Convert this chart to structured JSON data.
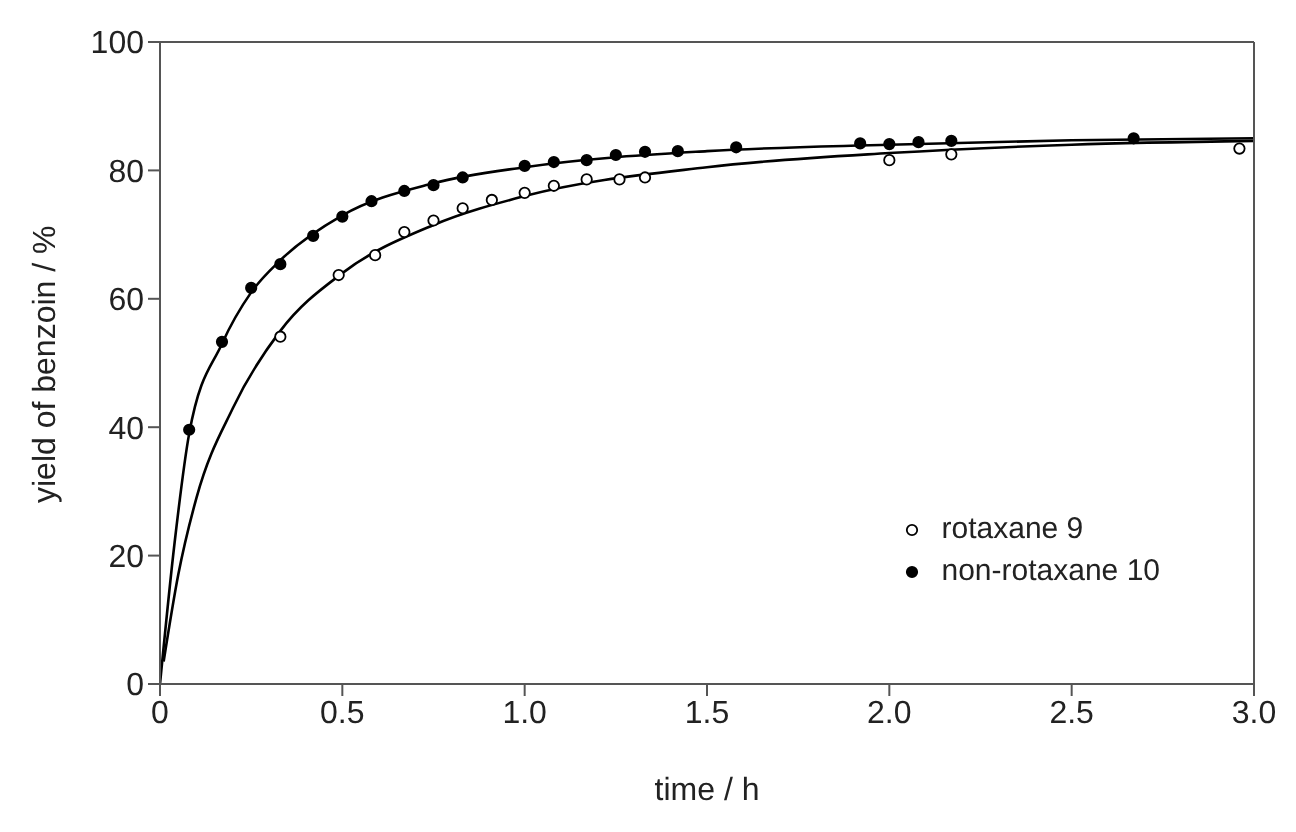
{
  "chart_data": {
    "type": "scatter",
    "xlabel": "time / h",
    "ylabel": "yield of benzoin / %",
    "xlim": [
      0,
      3.0
    ],
    "xticks": [
      0,
      0.5,
      {
        "value": 1,
        "label": "1.0"
      },
      1.5,
      {
        "value": 2,
        "label": "2.0"
      },
      2.5,
      {
        "value": 3,
        "label": "3.0"
      }
    ],
    "ylim": [
      0,
      100
    ],
    "yticks": [
      0,
      20,
      40,
      60,
      80,
      100
    ],
    "legend": "bottom right",
    "series": [
      {
        "type": "line",
        "color": "#000000",
        "marker": "none",
        "line_style": "solid",
        "x": [
          0,
          0.04,
          0.08,
          0.17,
          0.25,
          0.33,
          0.5,
          0.75,
          1.0,
          1.5,
          2.0,
          2.5,
          3.0
        ],
        "values": [
          0,
          22,
          39,
          53,
          61,
          66,
          73,
          78,
          80.5,
          83,
          84,
          84.7,
          85
        ]
      },
      {
        "type": "line",
        "color": "#000000",
        "marker": "none",
        "line_style": "solid",
        "x": [
          0.01,
          0.05,
          0.1,
          0.2,
          0.33,
          0.5,
          0.75,
          1.0,
          1.5,
          2.0,
          2.5,
          3.0
        ],
        "values": [
          3.5,
          17,
          29,
          43,
          55,
          64,
          71.5,
          76,
          80.5,
          82.7,
          84,
          84.6
        ]
      },
      {
        "name": "rotaxane 9",
        "color": "#ffffff",
        "marker": "circle",
        "x": [
          0.33,
          0.49,
          0.59,
          0.67,
          0.75,
          0.83,
          0.91,
          1.0,
          1.08,
          1.17,
          1.26,
          1.33,
          2.0,
          2.17,
          2.96
        ],
        "values": [
          54.1,
          63.7,
          66.8,
          70.4,
          72.2,
          74.1,
          75.4,
          76.5,
          77.6,
          78.6,
          78.6,
          78.9,
          81.6,
          82.5,
          83.4
        ]
      },
      {
        "name": "non-rotaxane 10",
        "color": "#000000",
        "marker": "circle",
        "x": [
          0.08,
          0.17,
          0.25,
          0.33,
          0.42,
          0.5,
          0.58,
          0.67,
          0.75,
          0.83,
          1.0,
          1.08,
          1.17,
          1.25,
          1.33,
          1.42,
          1.58,
          1.92,
          2.0,
          2.08,
          2.17,
          2.67
        ],
        "values": [
          39.6,
          53.3,
          61.7,
          65.4,
          69.8,
          72.8,
          75.2,
          76.8,
          77.7,
          78.9,
          80.7,
          81.3,
          81.6,
          82.4,
          82.9,
          83.0,
          83.6,
          84.2,
          84.1,
          84.4,
          84.6,
          85.0
        ]
      }
    ]
  }
}
